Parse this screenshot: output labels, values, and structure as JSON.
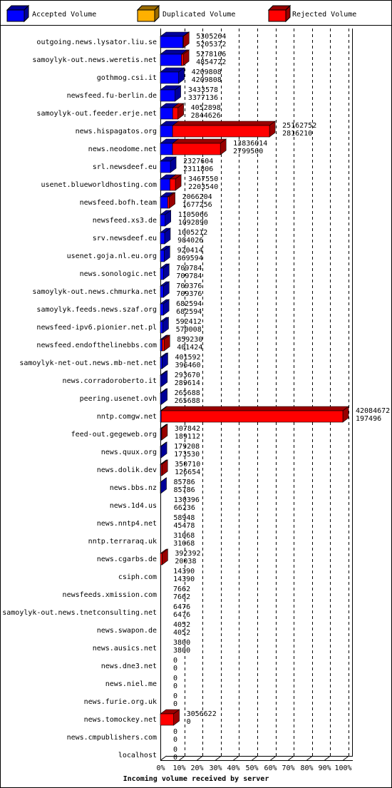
{
  "chart_data": {
    "type": "bar",
    "orientation": "horizontal",
    "xlabel": "Incoming volume received by server",
    "categories": [
      "outgoing.news.lysator.liu.se",
      "samoylyk-out.news.weretis.net",
      "gothmog.csi.it",
      "newsfeed.fu-berlin.de",
      "samoylyk-out.feeder.erje.net",
      "news.hispagatos.org",
      "news.neodome.net",
      "srl.newsdeef.eu",
      "usenet.blueworldhosting.com",
      "newsfeed.bofh.team",
      "newsfeed.xs3.de",
      "srv.newsdeef.eu",
      "usenet.goja.nl.eu.org",
      "news.sonologic.net",
      "samoylyk-out.news.chmurka.net",
      "samoylyk.feeds.news.szaf.org",
      "newsfeed-ipv6.pionier.net.pl",
      "newsfeed.endofthelinebbs.com",
      "samoylyk-net-out.news.mb-net.net",
      "news.corradoroberto.it",
      "peering.usenet.ovh",
      "nntp.comgw.net",
      "feed-out.gegeweb.org",
      "news.quux.org",
      "news.dolik.dev",
      "news.bbs.nz",
      "news.1d4.us",
      "news.nntp4.net",
      "nntp.terraraq.uk",
      "news.cgarbs.de",
      "csiph.com",
      "newsfeeds.xmission.com",
      "samoylyk-out.news.tnetconsulting.net",
      "news.swapon.de",
      "news.ausics.net",
      "news.dne3.net",
      "news.niel.me",
      "news.furie.org.uk",
      "news.tomockey.net",
      "news.cmpublishers.com",
      "localhost"
    ],
    "totals": [
      5305264,
      5278106,
      4209808,
      3433578,
      4052898,
      25162752,
      13836014,
      2327604,
      3467550,
      2066204,
      1105066,
      1005212,
      920414,
      709784,
      709376,
      682594,
      592412,
      859230,
      401592,
      293670,
      265688,
      42084672,
      307842,
      179208,
      350710,
      85786,
      130396,
      58948,
      31068,
      392392,
      14390,
      7662,
      6476,
      4052,
      3800,
      0,
      0,
      0,
      3056622,
      0,
      0
    ],
    "series": [
      {
        "name": "Accepted Volume",
        "color": "#0000ff",
        "values": [
          5205372,
          4854722,
          4209808,
          3377136,
          2844626,
          2816210,
          2799500,
          2311806,
          2203540,
          1677256,
          1092890,
          984026,
          869594,
          709784,
          709376,
          682594,
          570008,
          401424,
          396460,
          289614,
          265688,
          197496,
          189112,
          173530,
          126654,
          85786,
          66236,
          45478,
          31068,
          20038,
          14390,
          7662,
          6476,
          4052,
          3800,
          0,
          0,
          0,
          0,
          0,
          0
        ]
      },
      {
        "name": "Duplicated Volume",
        "color": "#ffb000"
      },
      {
        "name": "Rejected Volume",
        "color": "#ff0000"
      }
    ],
    "xlim": [
      0,
      42084672
    ],
    "xticks": [
      {
        "value": 0,
        "label": "0%"
      },
      {
        "value": 4208467.2,
        "label": "10%"
      },
      {
        "value": 8416934.4,
        "label": "20%"
      },
      {
        "value": 12625401.6,
        "label": "30%"
      },
      {
        "value": 16833868.8,
        "label": "40%"
      },
      {
        "value": 21042336,
        "label": "50%"
      },
      {
        "value": 25250803.2,
        "label": "60%"
      },
      {
        "value": 29459270.4,
        "label": "70%"
      },
      {
        "value": 33667737.6,
        "label": "80%"
      },
      {
        "value": 37876204.8,
        "label": "90%"
      },
      {
        "value": 42084672,
        "label": "100%"
      }
    ],
    "grid": true
  }
}
